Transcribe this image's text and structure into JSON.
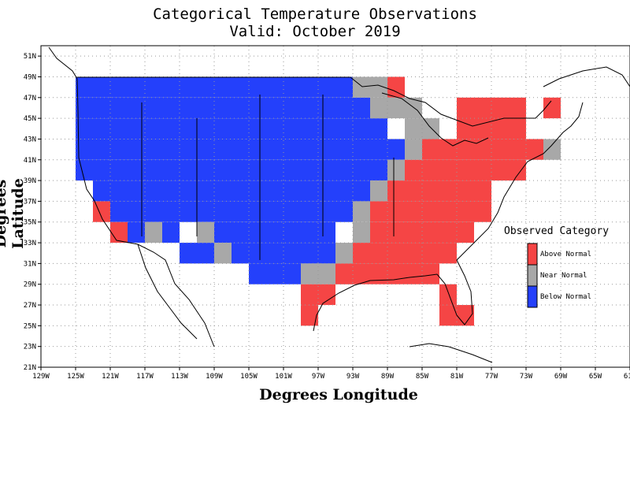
{
  "title_line1": "Categorical Temperature Observations",
  "title_line2": "Valid: October 2019",
  "xlabel": "Degrees Longitude",
  "ylabel": "Degrees Latitude",
  "legend": {
    "title": "Observed Category",
    "items": [
      {
        "label": "Above Normal",
        "color": "#f54545"
      },
      {
        "label": "Near Normal",
        "color": "#a8a8a8"
      },
      {
        "label": "Below Normal",
        "color": "#2440fb"
      }
    ]
  },
  "x_ticks": [
    "129W",
    "125W",
    "121W",
    "117W",
    "113W",
    "109W",
    "105W",
    "101W",
    "97W",
    "93W",
    "89W",
    "85W",
    "81W",
    "77W",
    "73W",
    "69W",
    "65W",
    "61W"
  ],
  "y_ticks": [
    "21N",
    "23N",
    "25N",
    "27N",
    "29N",
    "31N",
    "33N",
    "35N",
    "37N",
    "39N",
    "41N",
    "43N",
    "45N",
    "47N",
    "49N",
    "51N"
  ],
  "grid": true,
  "chart_data": {
    "type": "heatmap",
    "title": "Categorical Temperature Observations",
    "subtitle": "Valid: October 2019",
    "xlabel": "Degrees Longitude",
    "ylabel": "Degrees Latitude",
    "xlim": [
      -129,
      -61
    ],
    "ylim": [
      21,
      52
    ],
    "cell_size_deg": 2,
    "cells": {
      "below": [
        {
          "lat": [
            47,
            49
          ],
          "lon": [
            -125,
            -93
          ]
        },
        {
          "lat": [
            45,
            47
          ],
          "lon": [
            -125,
            -91
          ]
        },
        {
          "lat": [
            43,
            45
          ],
          "lon": [
            -125,
            -89
          ]
        },
        {
          "lat": [
            41,
            43
          ],
          "lon": [
            -125,
            -87
          ]
        },
        {
          "lat": [
            39,
            41
          ],
          "lon": [
            -125,
            -89
          ]
        },
        {
          "lat": [
            37,
            39
          ],
          "lon": [
            -123,
            -91
          ]
        },
        {
          "lat": [
            35,
            37
          ],
          "lon": [
            -121,
            -93
          ]
        },
        {
          "lat": [
            33,
            35
          ],
          "lon": [
            -119,
            -117
          ]
        },
        {
          "lat": [
            33,
            35
          ],
          "lon": [
            -115,
            -113
          ]
        },
        {
          "lat": [
            33,
            35
          ],
          "lon": [
            -109,
            -95
          ]
        },
        {
          "lat": [
            31,
            33
          ],
          "lon": [
            -113,
            -109
          ]
        },
        {
          "lat": [
            31,
            33
          ],
          "lon": [
            -107,
            -95
          ]
        },
        {
          "lat": [
            29,
            31
          ],
          "lon": [
            -105,
            -99
          ]
        }
      ],
      "near": [
        {
          "lat": [
            47,
            49
          ],
          "lon": [
            -93,
            -89
          ]
        },
        {
          "lat": [
            45,
            47
          ],
          "lon": [
            -91,
            -85
          ]
        },
        {
          "lat": [
            43,
            45
          ],
          "lon": [
            -87,
            -83
          ]
        },
        {
          "lat": [
            41,
            43
          ],
          "lon": [
            -87,
            -85
          ]
        },
        {
          "lat": [
            39,
            41
          ],
          "lon": [
            -89,
            -87
          ]
        },
        {
          "lat": [
            37,
            39
          ],
          "lon": [
            -91,
            -89
          ]
        },
        {
          "lat": [
            35,
            37
          ],
          "lon": [
            -93,
            -91
          ]
        },
        {
          "lat": [
            33,
            35
          ],
          "lon": [
            -117,
            -115
          ]
        },
        {
          "lat": [
            33,
            35
          ],
          "lon": [
            -111,
            -109
          ]
        },
        {
          "lat": [
            33,
            35
          ],
          "lon": [
            -93,
            -91
          ]
        },
        {
          "lat": [
            31,
            33
          ],
          "lon": [
            -109,
            -107
          ]
        },
        {
          "lat": [
            31,
            33
          ],
          "lon": [
            -95,
            -93
          ]
        },
        {
          "lat": [
            29,
            31
          ],
          "lon": [
            -99,
            -93
          ]
        },
        {
          "lat": [
            41,
            43
          ],
          "lon": [
            -71,
            -69
          ]
        }
      ],
      "above": [
        {
          "lat": [
            47,
            49
          ],
          "lon": [
            -89,
            -87
          ]
        },
        {
          "lat": [
            45,
            47
          ],
          "lon": [
            -71,
            -69
          ]
        },
        {
          "lat": [
            43,
            47
          ],
          "lon": [
            -81,
            -73
          ]
        },
        {
          "lat": [
            41,
            43
          ],
          "lon": [
            -85,
            -71
          ]
        },
        {
          "lat": [
            39,
            41
          ],
          "lon": [
            -87,
            -73
          ]
        },
        {
          "lat": [
            37,
            39
          ],
          "lon": [
            -89,
            -77
          ]
        },
        {
          "lat": [
            35,
            37
          ],
          "lon": [
            -91,
            -77
          ]
        },
        {
          "lat": [
            33,
            35
          ],
          "lon": [
            -91,
            -79
          ]
        },
        {
          "lat": [
            31,
            33
          ],
          "lon": [
            -93,
            -81
          ]
        },
        {
          "lat": [
            29,
            31
          ],
          "lon": [
            -95,
            -83
          ]
        },
        {
          "lat": [
            27,
            29
          ],
          "lon": [
            -83,
            -81
          ]
        },
        {
          "lat": [
            25,
            27
          ],
          "lon": [
            -83,
            -79
          ]
        },
        {
          "lat": [
            27,
            29
          ],
          "lon": [
            -99,
            -95
          ]
        },
        {
          "lat": [
            25,
            27
          ],
          "lon": [
            -99,
            -97
          ]
        },
        {
          "lat": [
            35,
            37
          ],
          "lon": [
            -123,
            -121
          ]
        },
        {
          "lat": [
            33,
            35
          ],
          "lon": [
            -121,
            -119
          ]
        }
      ]
    }
  }
}
